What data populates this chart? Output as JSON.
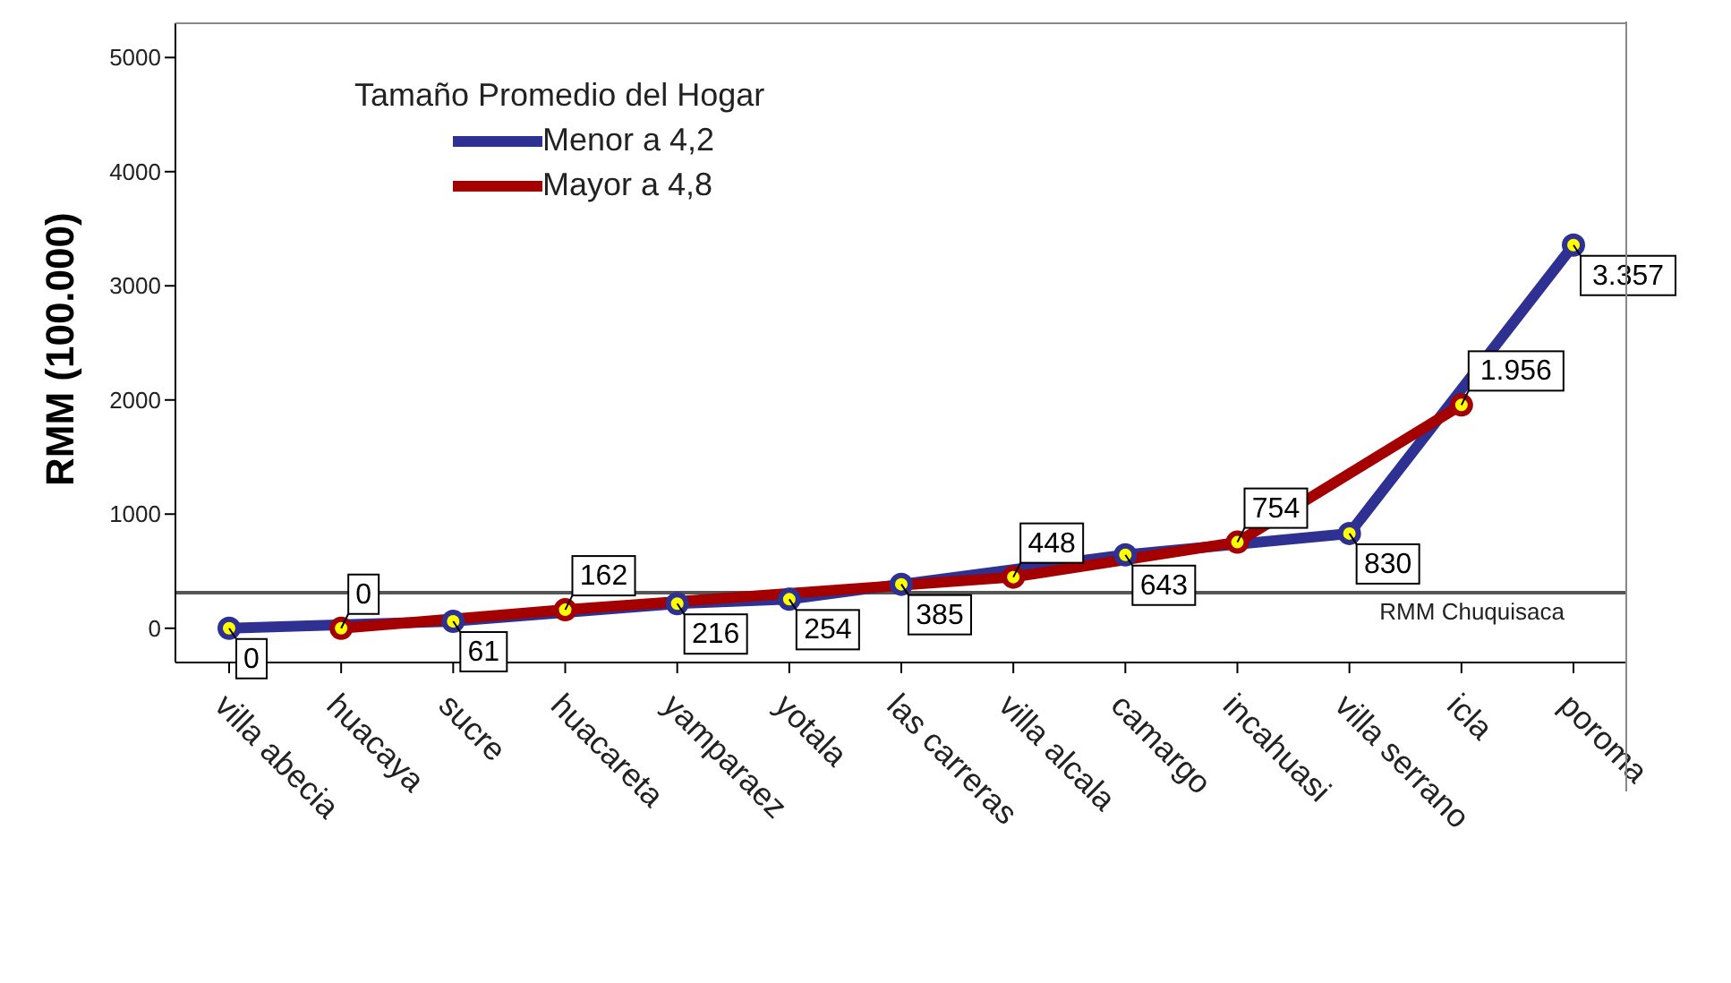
{
  "chart_data": {
    "type": "line",
    "ylabel": "RMM (100.000)",
    "legend_title": "Tamaño Promedio del Hogar",
    "categories": [
      "villa abecia",
      "huacaya",
      "sucre",
      "huacareta",
      "yamparaez",
      "yotala",
      "las carreras",
      "villa alcala",
      "camargo",
      "incahuasi",
      "villa serrano",
      "icla",
      "poroma"
    ],
    "series": [
      {
        "name": "Menor a 4,2",
        "color": "#2e3192",
        "values": [
          0,
          null,
          61,
          null,
          216,
          254,
          385,
          null,
          643,
          null,
          830,
          null,
          3357
        ],
        "value_labels": [
          "0",
          null,
          "61",
          null,
          "216",
          "254",
          "385",
          null,
          "643",
          null,
          "830",
          null,
          "3.357"
        ]
      },
      {
        "name": "Mayor a 4,8",
        "color": "#a50000",
        "values": [
          null,
          0,
          null,
          162,
          null,
          null,
          null,
          448,
          null,
          754,
          null,
          1956,
          null
        ],
        "value_labels": [
          null,
          "0",
          null,
          "162",
          null,
          null,
          null,
          "448",
          null,
          "754",
          null,
          "1.956",
          null
        ]
      }
    ],
    "ylim": [
      -300,
      5300
    ],
    "yticks": [
      0,
      1000,
      2000,
      3000,
      4000,
      5000
    ],
    "grid": false,
    "legend": "top left",
    "marker": "circle",
    "line_style": "solid",
    "ref_lines": [
      {
        "axis": "y",
        "value": 312,
        "label": "RMM Chuquisaca",
        "color": "#555555"
      }
    ]
  }
}
